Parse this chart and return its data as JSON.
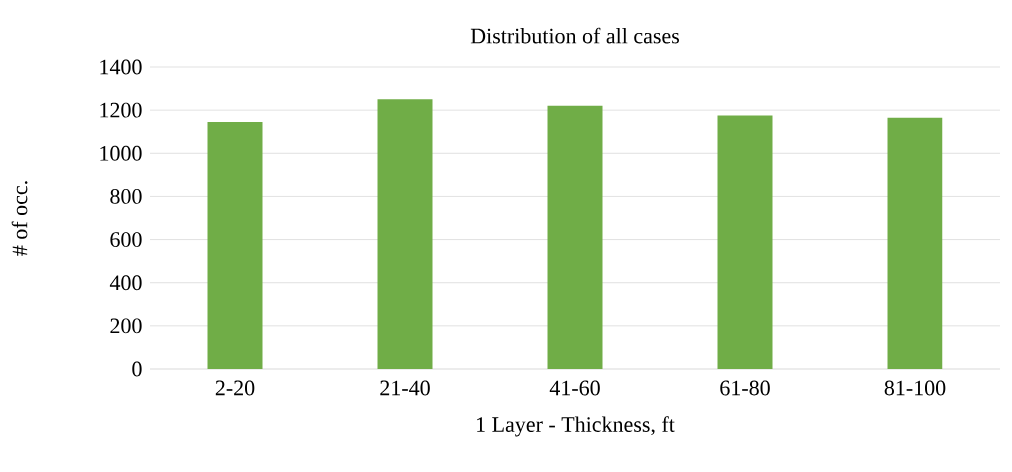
{
  "chart_data": {
    "type": "bar",
    "title": "Distribution of all cases",
    "xlabel": "1 Layer - Thickness, ft",
    "ylabel": "# of occ.",
    "categories": [
      "2-20",
      "21-40",
      "41-60",
      "61-80",
      "81-100"
    ],
    "values": [
      1145,
      1250,
      1220,
      1175,
      1165
    ],
    "color": "#70ad47",
    "ylim": [
      0,
      1400
    ],
    "yticks": [
      0,
      200,
      400,
      600,
      800,
      1000,
      1200,
      1400
    ],
    "grid": "y"
  }
}
